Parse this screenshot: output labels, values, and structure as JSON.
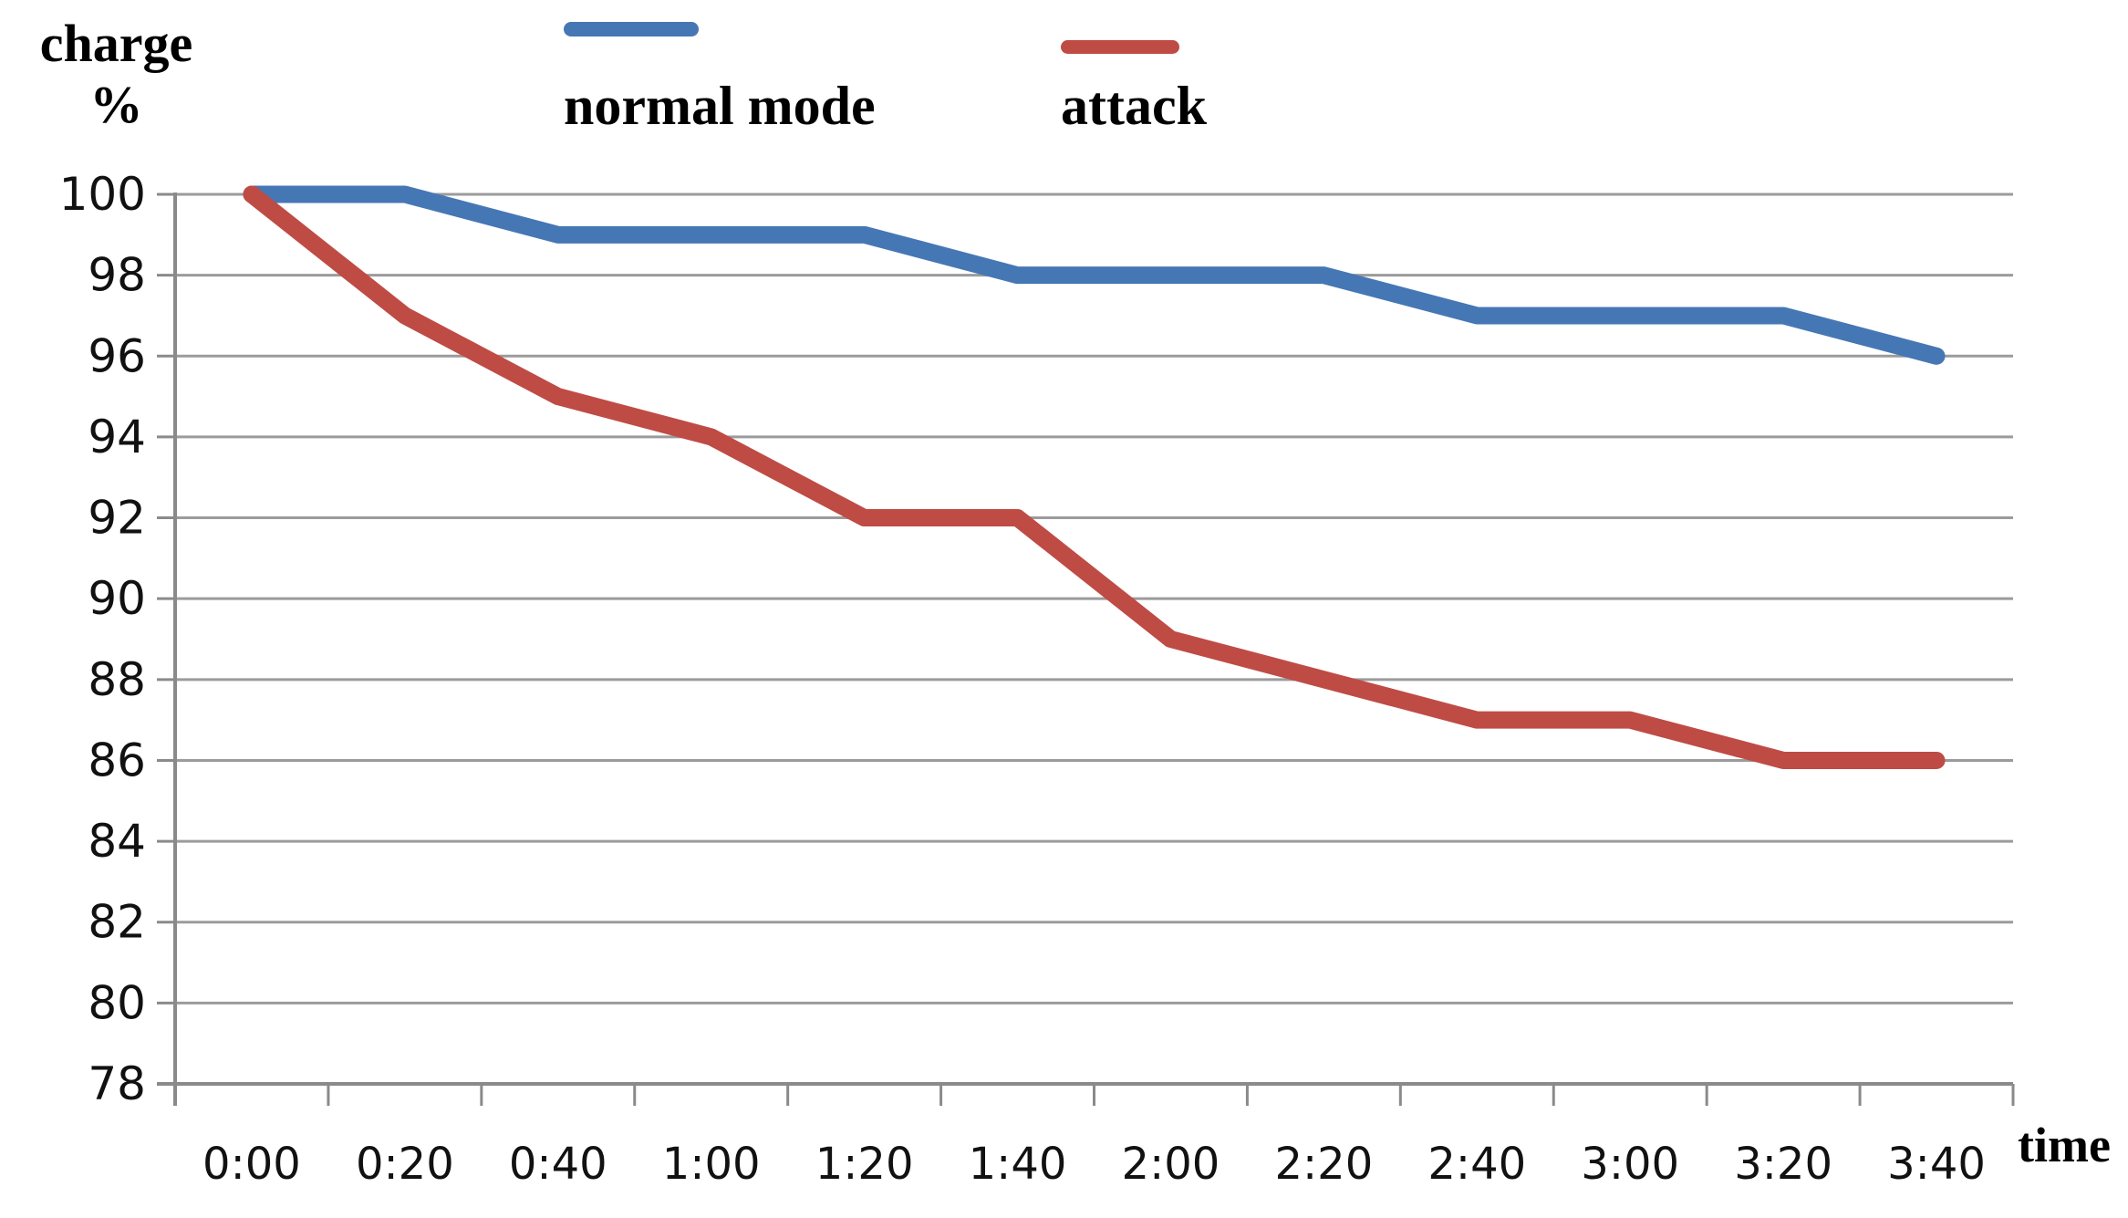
{
  "chart": {
    "y_axis_title_line1": "charge",
    "y_axis_title_line2": "%",
    "x_axis_title": "time"
  },
  "legend": [
    {
      "label": "normal mode",
      "color": "#4677b5"
    },
    {
      "label": "attack",
      "color": "#bf4b45"
    }
  ],
  "chart_data": {
    "type": "line",
    "title": "",
    "categories": [
      "0:00",
      "0:20",
      "0:40",
      "1:00",
      "1:20",
      "1:40",
      "2:00",
      "2:20",
      "2:40",
      "3:00",
      "3:20",
      "3:40"
    ],
    "series": [
      {
        "name": "normal mode",
        "color": "#4677b5",
        "values": [
          100,
          100,
          99,
          99,
          99,
          98,
          98,
          98,
          97,
          97,
          97,
          96
        ]
      },
      {
        "name": "attack",
        "color": "#bf4b45",
        "values": [
          100,
          97,
          95,
          94,
          92,
          92,
          89,
          88,
          87,
          87,
          86,
          86
        ]
      }
    ],
    "xlabel": "time",
    "ylabel": "charge %",
    "ylim": [
      78,
      100
    ],
    "ytick_step": 2,
    "grid": true,
    "legend_position": "top"
  },
  "style": {
    "gridline_color": "#9b9b9b",
    "axis_color": "#8a8a8a",
    "tick_label_color": "#111111",
    "line_width": 19
  }
}
